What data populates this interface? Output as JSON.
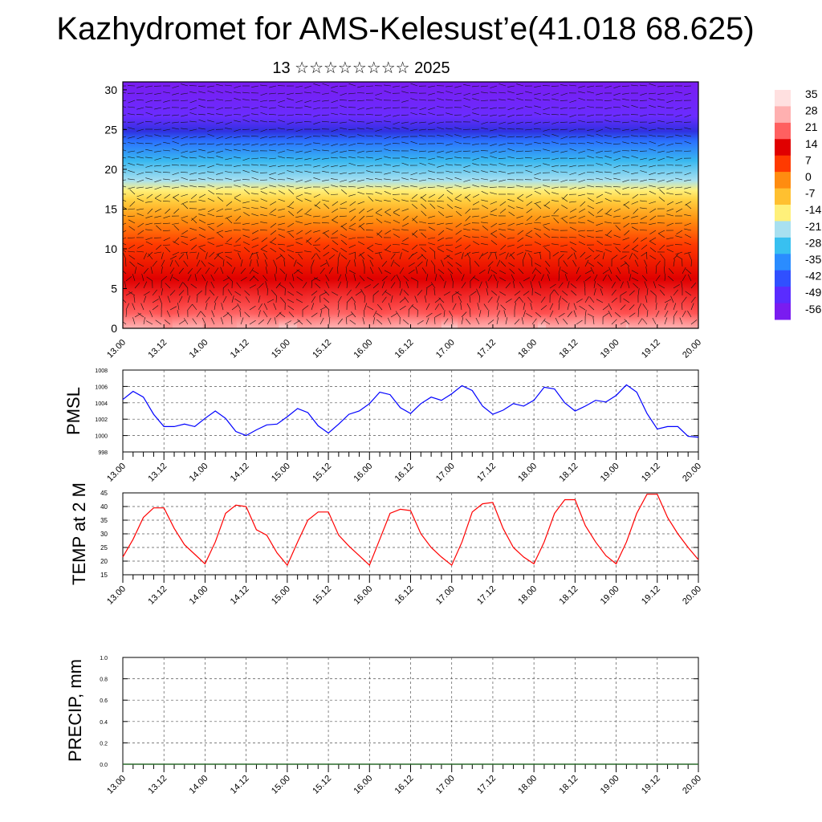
{
  "page": {
    "title": "Kazhydromet for AMS-Kelesust’e(41.018 68.625)",
    "subtitle": "13 ☆☆☆☆☆☆☆☆ 2025"
  },
  "colors": {
    "pmsl_line": "#0000ff",
    "temp_line": "#ff0000",
    "colorbar": [
      "#7a1cf0",
      "#5a2cff",
      "#3050ff",
      "#2a8cff",
      "#38c0f0",
      "#a8e0f0",
      "#fff07a",
      "#ffc030",
      "#ff8c10",
      "#ff3a00",
      "#e00000",
      "#ff6060",
      "#ffb0b0",
      "#ffe0e0"
    ]
  },
  "chart_data": [
    {
      "type": "heatmap",
      "title": "",
      "x_tick_labels": [
        "13.00",
        "13.12",
        "14.00",
        "14.12",
        "15.00",
        "15.12",
        "16.00",
        "16.12",
        "17.00",
        "17.12",
        "18.00",
        "18.12",
        "19.00",
        "19.12",
        "20.00"
      ],
      "y_tick_labels": [
        "0",
        "5",
        "10",
        "15",
        "20",
        "25",
        "30"
      ],
      "ylim": [
        0,
        31
      ],
      "colorbar_labels": [
        "35",
        "28",
        "21",
        "14",
        "7",
        "0",
        "-7",
        "-14",
        "-21",
        "-28",
        "-35",
        "-42",
        "-49",
        "-56"
      ],
      "overlay": "wind vectors"
    },
    {
      "type": "line",
      "ylabel": "PMSL",
      "ylim": [
        998,
        1008
      ],
      "y_tick_labels": [
        "998",
        "1000",
        "1002",
        "1004",
        "1006",
        "1008"
      ],
      "x_tick_labels": [
        "13.00",
        "13.12",
        "14.00",
        "14.12",
        "15.00",
        "15.12",
        "16.00",
        "16.12",
        "17.00",
        "17.12",
        "18.00",
        "18.12",
        "19.00",
        "19.12",
        "20.00"
      ],
      "x": [
        0,
        3,
        6,
        9,
        12,
        15,
        18,
        21,
        24,
        27,
        30,
        33,
        36,
        39,
        42,
        45,
        48,
        51,
        54,
        57,
        60,
        63,
        66,
        69,
        72,
        75,
        78,
        81,
        84,
        87,
        90,
        93,
        96,
        99,
        102,
        105,
        108,
        111,
        114,
        117,
        120,
        123,
        126,
        129,
        132,
        135,
        138,
        141,
        144,
        147,
        150,
        153,
        156,
        159,
        162,
        165,
        168
      ],
      "series": [
        {
          "values": [
            1004.4,
            1005.4,
            1004.7,
            1002.6,
            1001.1,
            1001.1,
            1001.4,
            1001.1,
            1002.1,
            1003,
            1002.1,
            1000.5,
            1000,
            1000.7,
            1001.3,
            1001.4,
            1002.3,
            1003.3,
            1002.8,
            1001.2,
            1000.3,
            1001.4,
            1002.6,
            1003,
            1003.9,
            1005.3,
            1005,
            1003.4,
            1002.7,
            1003.9,
            1004.7,
            1004.3,
            1005.1,
            1006.1,
            1005.5,
            1003.6,
            1002.6,
            1003.1,
            1003.9,
            1003.6,
            1004.3,
            1005.9,
            1005.7,
            1004,
            1003,
            1003.6,
            1004.3,
            1004.1,
            1004.9,
            1006.2,
            1005.3,
            1002.7,
            1000.8,
            1001.1,
            1001.1,
            999.9,
            999.8
          ]
        }
      ]
    },
    {
      "type": "line",
      "ylabel": "TEMP at 2 M",
      "ylim": [
        15,
        45
      ],
      "y_tick_labels": [
        "15",
        "20",
        "25",
        "30",
        "35",
        "40",
        "45"
      ],
      "x_tick_labels": [
        "13.00",
        "13.12",
        "14.00",
        "14.12",
        "15.00",
        "15.12",
        "16.00",
        "16.12",
        "17.00",
        "17.12",
        "18.00",
        "18.12",
        "19.00",
        "19.12",
        "20.00"
      ],
      "x": [
        0,
        3,
        6,
        9,
        12,
        15,
        18,
        21,
        24,
        27,
        30,
        33,
        36,
        39,
        42,
        45,
        48,
        51,
        54,
        57,
        60,
        63,
        66,
        69,
        72,
        75,
        78,
        81,
        84,
        87,
        90,
        93,
        96,
        99,
        102,
        105,
        108,
        111,
        114,
        117,
        120,
        123,
        126,
        129,
        132,
        135,
        138,
        141,
        144,
        147,
        150,
        153,
        156,
        159,
        162,
        165,
        168
      ],
      "series": [
        {
          "values": [
            21.5,
            28,
            36,
            39.5,
            39.5,
            32,
            26,
            22.5,
            19,
            27,
            37.5,
            40.5,
            40,
            31.5,
            29.5,
            23,
            18.5,
            27,
            35,
            38,
            38,
            29.5,
            25.5,
            22,
            18.5,
            28,
            37.5,
            39,
            38.5,
            30,
            25,
            21.5,
            18.5,
            27,
            38,
            41,
            41.5,
            32,
            25,
            21.5,
            19,
            27,
            37.5,
            42.5,
            42.5,
            33,
            27,
            22,
            19,
            27,
            37.5,
            44.5,
            44.5,
            36,
            30,
            25,
            20.5
          ]
        }
      ]
    },
    {
      "type": "line",
      "ylabel": "PRECIP, mm",
      "ylim": [
        0,
        1
      ],
      "y_tick_labels": [
        "0.0",
        "0.2",
        "0.4",
        "0.6",
        "0.8",
        "1.0"
      ],
      "x_tick_labels": [
        "13.00",
        "13.12",
        "14.00",
        "14.12",
        "15.00",
        "15.12",
        "16.00",
        "16.12",
        "17.00",
        "17.12",
        "18.00",
        "18.12",
        "19.00",
        "19.12",
        "20.00"
      ],
      "x": [
        0,
        24,
        48,
        72,
        96,
        120,
        144,
        168
      ],
      "series": [
        {
          "values": [
            0,
            0,
            0,
            0,
            0,
            0,
            0,
            0
          ]
        }
      ]
    }
  ]
}
